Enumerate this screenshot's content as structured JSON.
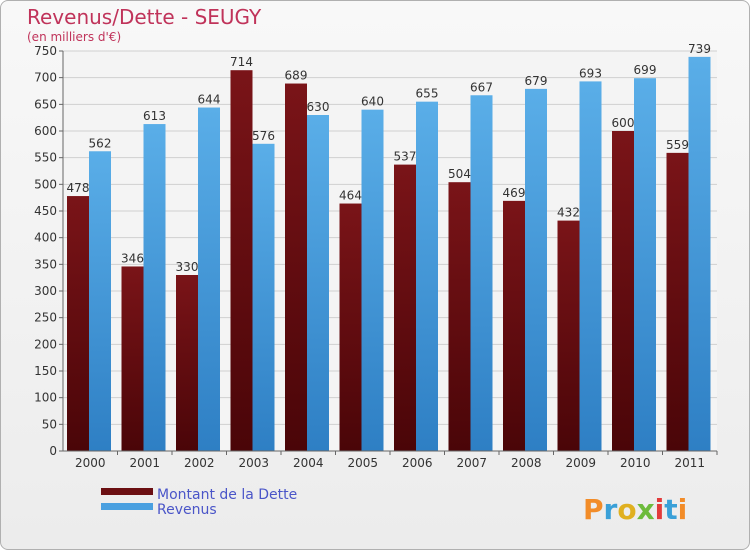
{
  "chart_data": {
    "type": "bar",
    "title": "Revenus/Dette - SEUGY",
    "subtitle": "(en milliers d'€)",
    "categories": [
      "2000",
      "2001",
      "2002",
      "2003",
      "2004",
      "2005",
      "2006",
      "2007",
      "2008",
      "2009",
      "2010",
      "2011"
    ],
    "series": [
      {
        "name": "Montant de la Dette",
        "values": [
          478,
          346,
          330,
          714,
          689,
          464,
          537,
          504,
          469,
          432,
          600,
          559
        ],
        "color": "#6b0f12"
      },
      {
        "name": "Revenus",
        "values": [
          562,
          613,
          644,
          576,
          630,
          640,
          655,
          667,
          679,
          693,
          699,
          739
        ],
        "color": "#4aa0e0"
      }
    ],
    "ylim": [
      0,
      750
    ],
    "yticks": [
      0,
      50,
      100,
      150,
      200,
      250,
      300,
      350,
      400,
      450,
      500,
      550,
      600,
      650,
      700,
      750
    ],
    "grid": true,
    "legend": "bottom-left"
  },
  "logo": {
    "text": "Proxiti"
  }
}
